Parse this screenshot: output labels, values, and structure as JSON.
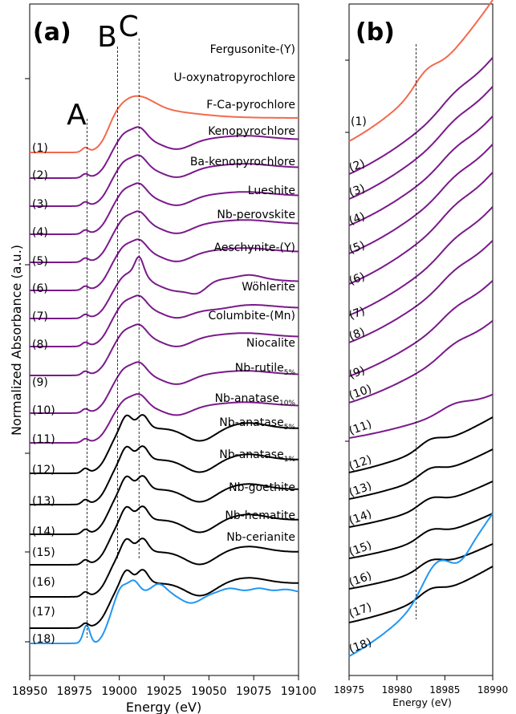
{
  "colors": {
    "first": "#f4694d",
    "purple": "#7a1a8a",
    "black": "#000000",
    "last": "#2196f3"
  },
  "chart_data": [
    {
      "panel": "(a)",
      "type": "line",
      "xlabel": "Energy (eV)",
      "ylabel": "Normalized Absorbance (a.u.)",
      "xlim": [
        18950,
        19100
      ],
      "xticks": [
        "18950",
        "18975",
        "19000",
        "19025",
        "19050",
        "19075",
        "19100"
      ],
      "ytick_count": 5,
      "grid": false,
      "feature_lines": [
        {
          "label": "A",
          "x": 18982
        },
        {
          "label": "B",
          "x": 18999
        },
        {
          "label": "C",
          "x": 19011
        }
      ],
      "series": [
        {
          "index": "(1)",
          "name": "Fergusonite-(Y)"
        },
        {
          "index": "(2)",
          "name": "U-oxynatropyrochlore"
        },
        {
          "index": "(3)",
          "name": "F-Ca-pyrochlore"
        },
        {
          "index": "(4)",
          "name": "Kenopyrochlore"
        },
        {
          "index": "(5)",
          "name": "Ba-kenopyrochlore"
        },
        {
          "index": "(6)",
          "name": "Lueshite"
        },
        {
          "index": "(7)",
          "name": "Nb-perovskite"
        },
        {
          "index": "(8)",
          "name": "Aeschynite-(Y)"
        },
        {
          "index": "(9)",
          "name": "Wöhlerite"
        },
        {
          "index": "(10)",
          "name": "Columbite-(Mn)"
        },
        {
          "index": "(11)",
          "name": "Niocalite"
        },
        {
          "index": "(12)",
          "name": "Nb-rutile",
          "sub": "5%"
        },
        {
          "index": "(13)",
          "name": "Nb-anatase",
          "sub": "10%"
        },
        {
          "index": "(14)",
          "name": "Nb-anatase",
          "sub": "5%"
        },
        {
          "index": "(15)",
          "name": "Nb-anatase",
          "sub": "1%"
        },
        {
          "index": "(16)",
          "name": "Nb-goethite"
        },
        {
          "index": "(17)",
          "name": "Nb-hematite"
        },
        {
          "index": "(18)",
          "name": "Nb-cerianite"
        }
      ]
    },
    {
      "panel": "(b)",
      "type": "line",
      "xlabel": "Energy (eV)",
      "xlim": [
        18975,
        18990
      ],
      "xticks": [
        "18975",
        "18980",
        "18985",
        "18990"
      ],
      "feature_line_x": 18982,
      "series_indices": [
        "(1)",
        "(2)",
        "(3)",
        "(4)",
        "(5)",
        "(6)",
        "(7)",
        "(8)",
        "(9)",
        "(10)",
        "(11)",
        "(12)",
        "(13)",
        "(14)",
        "(15)",
        "(16)",
        "(17)",
        "(18)"
      ]
    }
  ]
}
